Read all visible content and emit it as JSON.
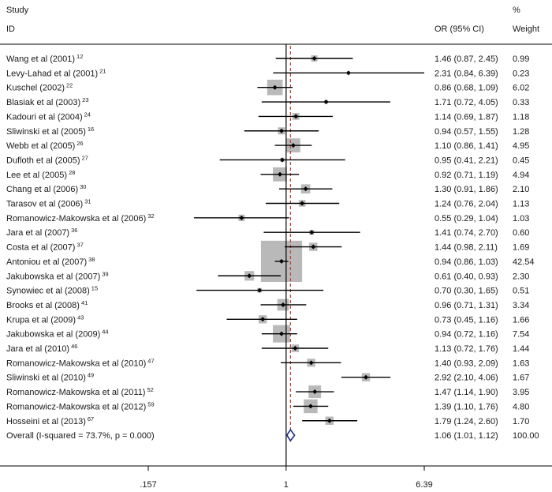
{
  "chart_data": {
    "type": "scatter",
    "header": {
      "study": "Study",
      "id": "ID",
      "estimate": "OR (95% CI)",
      "weight_pct": "%",
      "weight": "Weight"
    },
    "x_axis": {
      "scale": "log",
      "range": [
        0.157,
        6.39
      ],
      "ticks": [
        ".157",
        "1",
        "6.39"
      ],
      "tick_values": [
        0.157,
        1,
        6.39
      ],
      "reference_line": 1
    },
    "grid": false,
    "colors": {
      "weight_box": "#b9b9b9",
      "ci_line": "#000000",
      "point": "#000000",
      "null_line": "#000000",
      "overall_line": "#c0392b",
      "overall_diamond": "#1f2a80"
    },
    "studies": [
      {
        "study": "Wang et al (2001)",
        "ref": "12",
        "or": 1.46,
        "lo": 0.87,
        "hi": 2.45,
        "estimate": "1.46 (0.87, 2.45)",
        "weight": "0.99"
      },
      {
        "study": "Levy-Lahad et al (2001)",
        "ref": "21",
        "or": 2.31,
        "lo": 0.84,
        "hi": 6.39,
        "estimate": "2.31 (0.84, 6.39)",
        "weight": "0.23"
      },
      {
        "study": "Kuschel (2002)",
        "ref": "22",
        "or": 0.86,
        "lo": 0.68,
        "hi": 1.09,
        "estimate": "0.86 (0.68, 1.09)",
        "weight": "6.02"
      },
      {
        "study": "Blasiak et al (2003)",
        "ref": "23",
        "or": 1.71,
        "lo": 0.72,
        "hi": 4.05,
        "estimate": "1.71 (0.72, 4.05)",
        "weight": "0.33"
      },
      {
        "study": "Kadouri et al (2004)",
        "ref": "24",
        "or": 1.14,
        "lo": 0.69,
        "hi": 1.87,
        "estimate": "1.14 (0.69, 1.87)",
        "weight": "1.18"
      },
      {
        "study": "Sliwinski et al (2005)",
        "ref": "16",
        "or": 0.94,
        "lo": 0.57,
        "hi": 1.55,
        "estimate": "0.94 (0.57, 1.55)",
        "weight": "1.28"
      },
      {
        "study": "Webb et al (2005)",
        "ref": "26",
        "or": 1.1,
        "lo": 0.86,
        "hi": 1.41,
        "estimate": "1.10 (0.86, 1.41)",
        "weight": "4.95"
      },
      {
        "study": "Dufloth et al (2005)",
        "ref": "27",
        "or": 0.95,
        "lo": 0.41,
        "hi": 2.21,
        "estimate": "0.95 (0.41, 2.21)",
        "weight": "0.45"
      },
      {
        "study": "Lee et al (2005)",
        "ref": "28",
        "or": 0.92,
        "lo": 0.71,
        "hi": 1.19,
        "estimate": "0.92 (0.71, 1.19)",
        "weight": "4.94"
      },
      {
        "study": "Chang et al (2006)",
        "ref": "30",
        "or": 1.3,
        "lo": 0.91,
        "hi": 1.86,
        "estimate": "1.30 (0.91, 1.86)",
        "weight": "2.10"
      },
      {
        "study": "Tarasov et al (2006)",
        "ref": "31",
        "or": 1.24,
        "lo": 0.76,
        "hi": 2.04,
        "estimate": "1.24 (0.76, 2.04)",
        "weight": "1.13"
      },
      {
        "study": "Romanowicz-Makowska et al (2006)",
        "ref": "32",
        "or": 0.55,
        "lo": 0.29,
        "hi": 1.04,
        "estimate": "0.55 (0.29, 1.04)",
        "weight": "1.03"
      },
      {
        "study": "Jara et al (2007)",
        "ref": "36",
        "or": 1.41,
        "lo": 0.74,
        "hi": 2.7,
        "estimate": "1.41 (0.74, 2.70)",
        "weight": "0.60"
      },
      {
        "study": "Costa et al (2007)",
        "ref": "37",
        "or": 1.44,
        "lo": 0.98,
        "hi": 2.11,
        "estimate": "1.44 (0.98, 2.11)",
        "weight": "1.69"
      },
      {
        "study": "Antoniou et al (2007)",
        "ref": "38",
        "or": 0.94,
        "lo": 0.86,
        "hi": 1.03,
        "estimate": "0.94 (0.86, 1.03)",
        "weight": "42.54"
      },
      {
        "study": "Jakubowska et al (2007)",
        "ref": "39",
        "or": 0.61,
        "lo": 0.4,
        "hi": 0.93,
        "estimate": "0.61 (0.40, 0.93)",
        "weight": "2.30"
      },
      {
        "study": "Synowiec et al (2008)",
        "ref": "15",
        "or": 0.7,
        "lo": 0.3,
        "hi": 1.65,
        "estimate": "0.70 (0.30, 1.65)",
        "weight": "0.51"
      },
      {
        "study": "Brooks et al (2008)",
        "ref": "41",
        "or": 0.96,
        "lo": 0.71,
        "hi": 1.31,
        "estimate": "0.96 (0.71, 1.31)",
        "weight": "3.34"
      },
      {
        "study": "Krupa et al (2009)",
        "ref": "43",
        "or": 0.73,
        "lo": 0.45,
        "hi": 1.16,
        "estimate": "0.73 (0.45, 1.16)",
        "weight": "1.66"
      },
      {
        "study": "Jakubowska et al (2009)",
        "ref": "44",
        "or": 0.94,
        "lo": 0.72,
        "hi": 1.16,
        "estimate": "0.94 (0.72, 1.16)",
        "weight": "7.54"
      },
      {
        "study": "Jara et al (2010)",
        "ref": "46",
        "or": 1.13,
        "lo": 0.72,
        "hi": 1.76,
        "estimate": "1.13 (0.72, 1.76)",
        "weight": "1.44"
      },
      {
        "study": "Romanowicz-Makowska et al (2010)",
        "ref": "47",
        "or": 1.4,
        "lo": 0.93,
        "hi": 2.09,
        "estimate": "1.40 (0.93, 2.09)",
        "weight": "1.63"
      },
      {
        "study": "Sliwinski et al (2010)",
        "ref": "49",
        "or": 2.92,
        "lo": 2.1,
        "hi": 4.06,
        "estimate": "2.92 (2.10, 4.06)",
        "weight": "1.67"
      },
      {
        "study": "Romanowicz-Makowska et al (2011)",
        "ref": "52",
        "or": 1.47,
        "lo": 1.14,
        "hi": 1.9,
        "estimate": "1.47 (1.14, 1.90)",
        "weight": "3.95"
      },
      {
        "study": "Romanowicz-Makowska et al (2012)",
        "ref": "59",
        "or": 1.39,
        "lo": 1.1,
        "hi": 1.76,
        "estimate": "1.39 (1.10, 1.76)",
        "weight": "4.80"
      },
      {
        "study": "Hosseini et al (2013)",
        "ref": "67",
        "or": 1.79,
        "lo": 1.24,
        "hi": 2.6,
        "estimate": "1.79 (1.24, 2.60)",
        "weight": "1.70"
      }
    ],
    "overall": {
      "label": "Overall (I-squared = 73.7%, p = 0.000)",
      "or": 1.06,
      "lo": 1.01,
      "hi": 1.12,
      "estimate": "1.06 (1.01, 1.12)",
      "weight": "100.00"
    }
  }
}
